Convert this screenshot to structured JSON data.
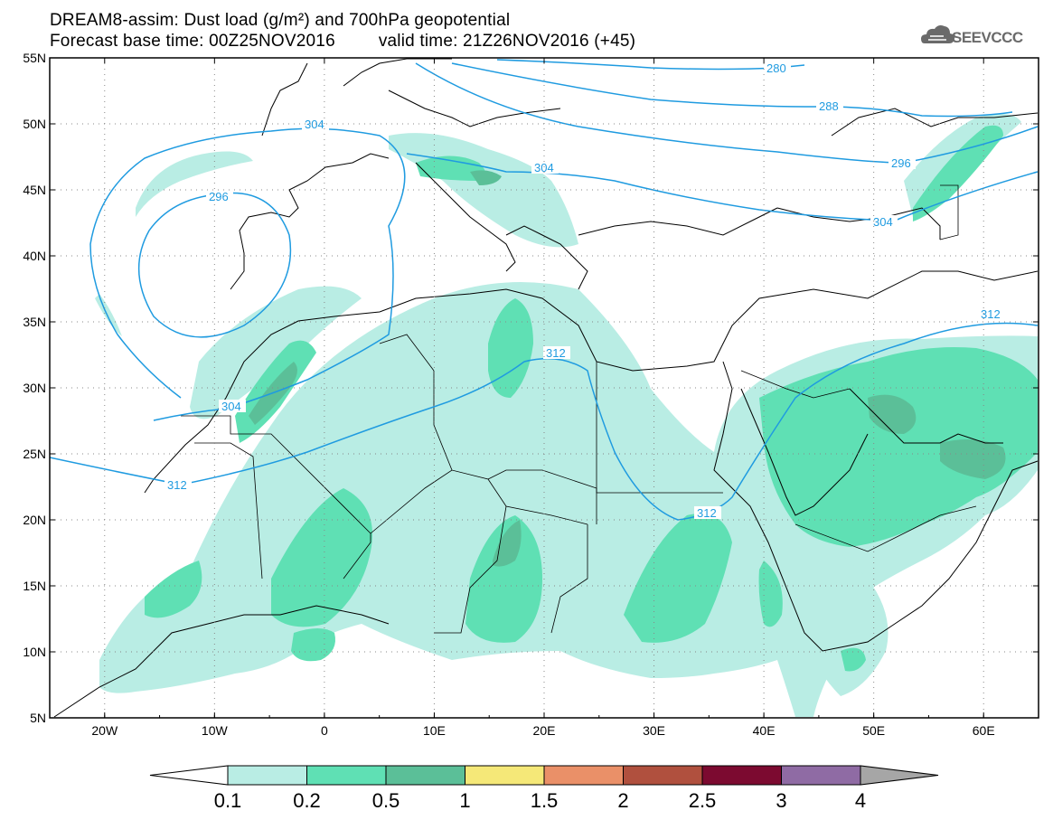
{
  "header": {
    "line1": "DREAM8-assim: Dust load (g/m²) and 700hPa geopotential",
    "base_time": "Forecast base time: 00Z25NOV2016",
    "valid_time": "valid time: 21Z26NOV2016 (+45)"
  },
  "logo": {
    "text": "SEEVCCC",
    "icon": "cloud-icon"
  },
  "map": {
    "lat_range": [
      5,
      55
    ],
    "lon_range": [
      -25,
      65
    ],
    "lat_ticks": [
      "5N",
      "10N",
      "15N",
      "20N",
      "25N",
      "30N",
      "35N",
      "40N",
      "45N",
      "50N",
      "55N"
    ],
    "lon_ticks": [
      "20W",
      "10W",
      "0",
      "10E",
      "20E",
      "30E",
      "40E",
      "50E",
      "60E"
    ],
    "contour_color": "#1f9be0",
    "contour_labels": [
      "280",
      "288",
      "296",
      "304",
      "304",
      "304",
      "304",
      "296",
      "312",
      "312",
      "312",
      "312"
    ]
  },
  "colorbar": {
    "labels": [
      "0.1",
      "0.2",
      "0.5",
      "1",
      "1.5",
      "2",
      "2.5",
      "3",
      "4"
    ],
    "colors": [
      "#b9ede4",
      "#5fe0b4",
      "#5bbf98",
      "#f5e878",
      "#ea9068",
      "#b0503e",
      "#7c0a30",
      "#8f6ba4"
    ],
    "low_end_color": "#ffffff",
    "high_end_color": "#a6a6a6"
  }
}
